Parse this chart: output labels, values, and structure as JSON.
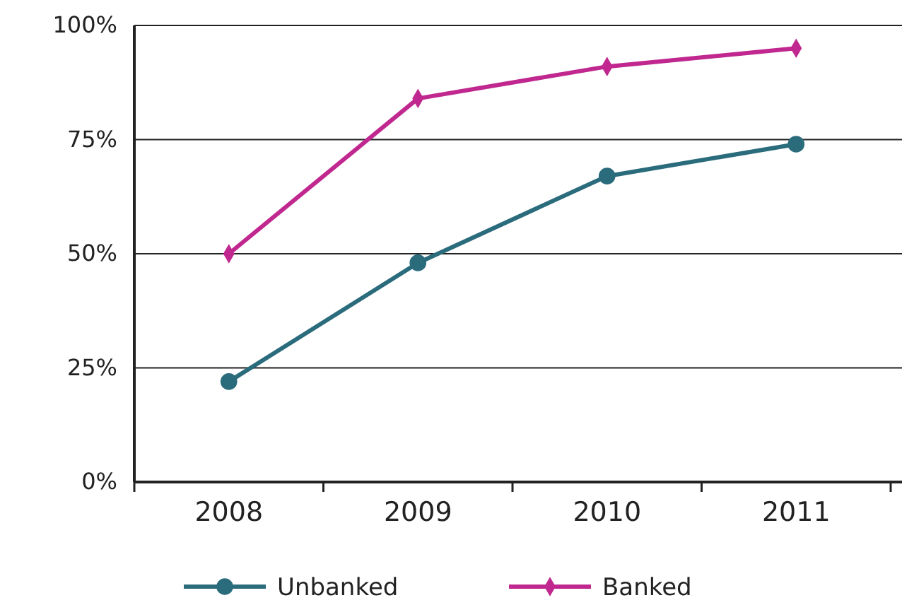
{
  "chart_data": {
    "type": "line",
    "categories": [
      "2008",
      "2009",
      "2010",
      "2011"
    ],
    "series": [
      {
        "name": "Unbanked",
        "color": "#2a6b7c",
        "marker": "circle",
        "values": [
          22,
          48,
          67,
          74
        ]
      },
      {
        "name": "Banked",
        "color": "#c0288f",
        "marker": "diamond",
        "values": [
          50,
          84,
          91,
          95
        ]
      }
    ],
    "ylim": [
      0,
      100
    ],
    "yticks": [
      {
        "value": 0,
        "label": "0%"
      },
      {
        "value": 25,
        "label": "25%"
      },
      {
        "value": 50,
        "label": "50%"
      },
      {
        "value": 75,
        "label": "75%"
      },
      {
        "value": 100,
        "label": "100%"
      }
    ],
    "grid": "y",
    "legend": "bottom",
    "line_style": "solid"
  }
}
